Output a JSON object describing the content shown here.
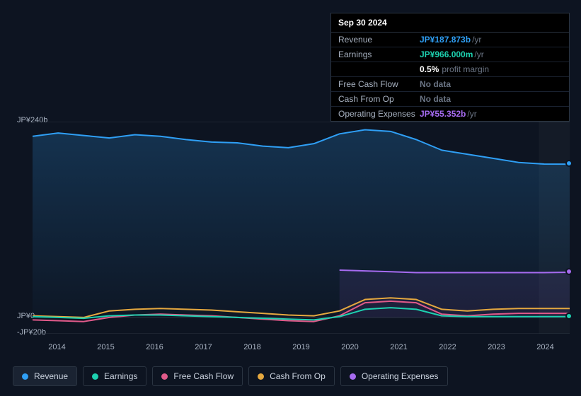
{
  "tooltip": {
    "date": "Sep 30 2024",
    "rows": [
      {
        "label": "Revenue",
        "value": "JP¥187.873b",
        "unit": "/yr",
        "color": "#2f9ff5"
      },
      {
        "label": "Earnings",
        "value": "JP¥966.000m",
        "unit": "/yr",
        "color": "#1dd1b0"
      },
      {
        "label": "",
        "value": "0.5%",
        "sub": "profit margin",
        "color": "#ffffff"
      },
      {
        "label": "Free Cash Flow",
        "value": "No data",
        "unit": "",
        "color": "#6b7585"
      },
      {
        "label": "Cash From Op",
        "value": "No data",
        "unit": "",
        "color": "#6b7585"
      },
      {
        "label": "Operating Expenses",
        "value": "JP¥55.352b",
        "unit": "/yr",
        "color": "#a66bf0"
      }
    ]
  },
  "chart": {
    "type": "area-line",
    "background_color": "#0d1421",
    "grid_color": "#2a3441",
    "y_axis": {
      "min": -20,
      "max": 240,
      "ticks": [
        {
          "v": 240,
          "label": "JP¥240b"
        },
        {
          "v": 0,
          "label": "JP¥0"
        },
        {
          "v": -20,
          "label": "-JP¥20b"
        }
      ],
      "label_fontsize": 11,
      "label_color": "#a8b2c1"
    },
    "x_axis": {
      "years": [
        "2014",
        "2015",
        "2016",
        "2017",
        "2018",
        "2019",
        "2020",
        "2021",
        "2022",
        "2023",
        "2024"
      ],
      "label_fontsize": 11,
      "label_color": "#a8b2c1"
    },
    "series": {
      "revenue": {
        "color": "#2f9ff5",
        "fill": "rgba(47,159,245,0.12)",
        "line_width": 2,
        "data": [
          222,
          226,
          223,
          220,
          224,
          222,
          218,
          215,
          214,
          210,
          208,
          213,
          225,
          230,
          228,
          218,
          205,
          200,
          195,
          190,
          188,
          187.9
        ]
      },
      "operating_expenses": {
        "color": "#a66bf0",
        "fill": "rgba(166,107,240,0.10)",
        "line_width": 2,
        "start_index": 12,
        "data": [
          58,
          57,
          56,
          55,
          55,
          55,
          55,
          55,
          55,
          55.4
        ]
      },
      "cash_from_op": {
        "color": "#e5a83f",
        "line_width": 2,
        "data": [
          2,
          1,
          0,
          8,
          10,
          11,
          10,
          9,
          7,
          5,
          3,
          2,
          8,
          22,
          24,
          22,
          10,
          8,
          10,
          11,
          11,
          11
        ]
      },
      "free_cash_flow": {
        "color": "#e05a8a",
        "line_width": 2,
        "data": [
          -3,
          -4,
          -5,
          0,
          3,
          4,
          3,
          2,
          0,
          -2,
          -4,
          -5,
          2,
          18,
          20,
          18,
          4,
          2,
          4,
          5,
          5,
          5
        ]
      },
      "earnings": {
        "color": "#1dd1b0",
        "line_width": 2,
        "data": [
          1,
          0,
          -1,
          2,
          3,
          3,
          2,
          1,
          0,
          -1,
          -2,
          -3,
          1,
          10,
          12,
          10,
          2,
          1,
          1,
          1,
          1,
          1
        ]
      }
    },
    "end_dots": [
      {
        "color": "#2f9ff5",
        "y": 187.9
      },
      {
        "color": "#a66bf0",
        "y": 55.4
      },
      {
        "color": "#1dd1b0",
        "y": 1
      }
    ]
  },
  "legend": [
    {
      "label": "Revenue",
      "color": "#2f9ff5",
      "active": true
    },
    {
      "label": "Earnings",
      "color": "#1dd1b0",
      "active": false
    },
    {
      "label": "Free Cash Flow",
      "color": "#e05a8a",
      "active": false
    },
    {
      "label": "Cash From Op",
      "color": "#e5a83f",
      "active": false
    },
    {
      "label": "Operating Expenses",
      "color": "#a66bf0",
      "active": false
    }
  ]
}
